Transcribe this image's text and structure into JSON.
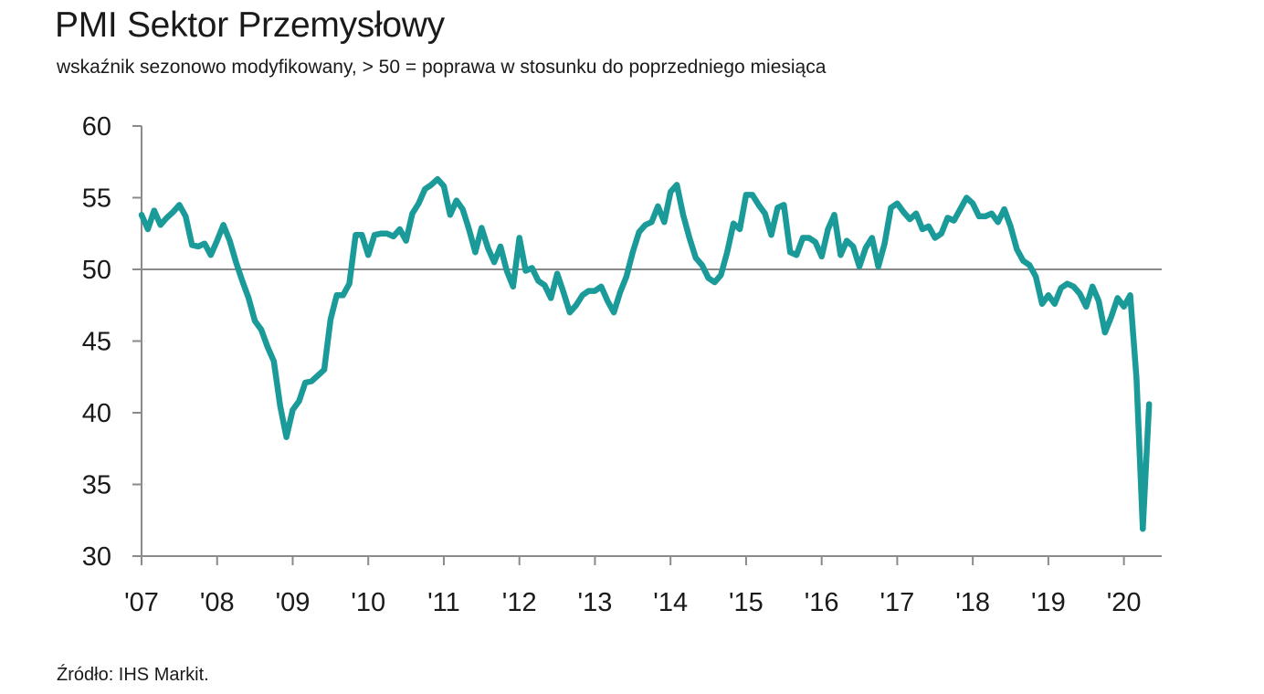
{
  "header": {
    "title": "PMI Sektor Przemysłowy",
    "subtitle": "wskaźnik sezonowo modyfikowany, > 50 = poprawa w stosunku do poprzedniego miesiąca"
  },
  "footer": {
    "source": "Źródło:  IHS Markit."
  },
  "colors": {
    "series": "#1a9a98",
    "axis": "#8a8a8a",
    "reference_line": "#8a8a8a"
  },
  "chart_data": {
    "type": "line",
    "x_tick_labels": [
      "'07",
      "'08",
      "'09",
      "'10",
      "'11",
      "'12",
      "'13",
      "'14",
      "'15",
      "'16",
      "'17",
      "'18",
      "'19",
      "'20"
    ],
    "y_ticks": [
      30,
      35,
      40,
      45,
      50,
      55,
      60
    ],
    "ylim": [
      30,
      60
    ],
    "xlim": [
      "2007-01",
      "2020-07"
    ],
    "reference_line": 50,
    "grid": false,
    "legend": "none",
    "series": [
      {
        "start": "2007-01",
        "frequency": "monthly",
        "values": [
          53.8,
          52.8,
          54.1,
          53.1,
          53.6,
          54.0,
          54.5,
          53.7,
          51.7,
          51.6,
          51.8,
          51.0,
          52.0,
          53.1,
          52.0,
          50.5,
          49.2,
          48.0,
          46.4,
          45.8,
          44.6,
          43.6,
          40.5,
          38.3,
          40.2,
          40.8,
          42.1,
          42.2,
          42.6,
          43.0,
          46.5,
          48.2,
          48.2,
          49.0,
          52.4,
          52.4,
          51.0,
          52.4,
          52.5,
          52.5,
          52.3,
          52.8,
          52.0,
          53.9,
          54.6,
          55.6,
          55.9,
          56.3,
          55.8,
          53.8,
          54.8,
          54.2,
          52.8,
          51.2,
          52.9,
          51.5,
          50.5,
          51.6,
          49.9,
          48.8,
          52.2,
          49.9,
          50.1,
          49.2,
          48.9,
          48.0,
          49.7,
          48.4,
          47.0,
          47.5,
          48.2,
          48.5,
          48.5,
          48.8,
          47.8,
          47.0,
          48.4,
          49.5,
          51.2,
          52.6,
          53.1,
          53.3,
          54.4,
          53.3,
          55.4,
          55.9,
          53.8,
          52.2,
          50.8,
          50.3,
          49.4,
          49.1,
          49.6,
          51.2,
          53.2,
          52.8,
          55.2,
          55.2,
          54.5,
          53.9,
          52.4,
          54.3,
          54.5,
          51.2,
          51.0,
          52.2,
          52.2,
          51.9,
          50.9,
          52.8,
          53.8,
          51.0,
          52.0,
          51.6,
          50.2,
          51.5,
          52.2,
          50.2,
          51.8,
          54.3,
          54.6,
          54.0,
          53.5,
          53.9,
          52.8,
          53.0,
          52.2,
          52.5,
          53.6,
          53.4,
          54.2,
          55.0,
          54.6,
          53.7,
          53.7,
          53.9,
          53.3,
          54.2,
          53.0,
          51.4,
          50.6,
          50.3,
          49.5,
          47.6,
          48.2,
          47.6,
          48.7,
          49.0,
          48.8,
          48.3,
          47.4,
          48.8,
          47.8,
          45.6,
          46.7,
          48.0,
          47.4,
          48.2,
          42.4,
          31.9,
          40.6
        ]
      }
    ]
  }
}
